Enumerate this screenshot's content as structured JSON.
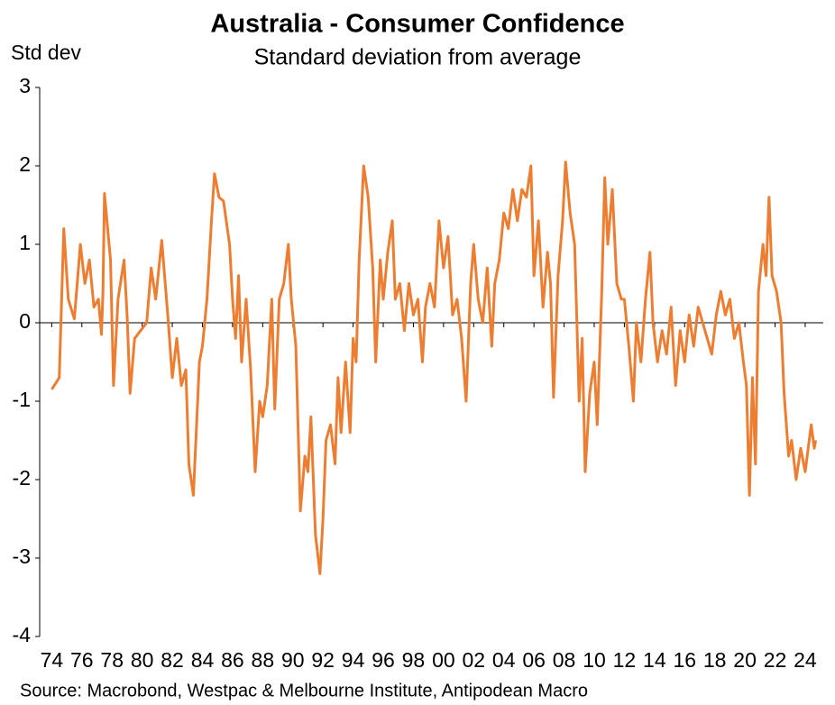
{
  "chart_data": {
    "type": "line",
    "title": "Australia - Consumer Confidence",
    "subtitle": "Standard deviation from average",
    "y_label": "Std dev",
    "source": "Source: Macrobond, Westpac & Melbourne Institute, Antipodean Macro",
    "xlim": [
      1973.2,
      2025.2
    ],
    "xticks": [
      {
        "value": 1974,
        "label": "74"
      },
      {
        "value": 1976,
        "label": "76"
      },
      {
        "value": 1978,
        "label": "78"
      },
      {
        "value": 1980,
        "label": "80"
      },
      {
        "value": 1982,
        "label": "82"
      },
      {
        "value": 1984,
        "label": "84"
      },
      {
        "value": 1986,
        "label": "86"
      },
      {
        "value": 1988,
        "label": "88"
      },
      {
        "value": 1990,
        "label": "90"
      },
      {
        "value": 1992,
        "label": "92"
      },
      {
        "value": 1994,
        "label": "94"
      },
      {
        "value": 1996,
        "label": "96"
      },
      {
        "value": 1998,
        "label": "98"
      },
      {
        "value": 2000,
        "label": "00"
      },
      {
        "value": 2002,
        "label": "02"
      },
      {
        "value": 2004,
        "label": "04"
      },
      {
        "value": 2006,
        "label": "06"
      },
      {
        "value": 2008,
        "label": "08"
      },
      {
        "value": 2010,
        "label": "10"
      },
      {
        "value": 2012,
        "label": "12"
      },
      {
        "value": 2014,
        "label": "14"
      },
      {
        "value": 2016,
        "label": "16"
      },
      {
        "value": 2018,
        "label": "18"
      },
      {
        "value": 2020,
        "label": "20"
      },
      {
        "value": 2022,
        "label": "22"
      },
      {
        "value": 2024,
        "label": "24"
      }
    ],
    "ylim": [
      -4,
      3
    ],
    "yticks": [
      3,
      2,
      1,
      0,
      -1,
      -2,
      -3,
      -4
    ],
    "grid": false,
    "x": [
      1974.0,
      1974.5,
      1974.8,
      1975.1,
      1975.5,
      1975.9,
      1976.2,
      1976.5,
      1976.8,
      1977.1,
      1977.3,
      1977.4,
      1977.5,
      1977.9,
      1978.1,
      1978.4,
      1978.8,
      1979.0,
      1979.2,
      1979.5,
      1979.9,
      1980.3,
      1980.6,
      1980.9,
      1981.3,
      1981.7,
      1982.0,
      1982.3,
      1982.6,
      1982.9,
      1983.1,
      1983.4,
      1983.8,
      1984.0,
      1984.3,
      1984.6,
      1984.8,
      1985.1,
      1985.4,
      1985.8,
      1986.0,
      1986.2,
      1986.4,
      1986.6,
      1986.9,
      1987.2,
      1987.5,
      1987.8,
      1988.0,
      1988.3,
      1988.6,
      1988.8,
      1989.1,
      1989.4,
      1989.7,
      1989.9,
      1990.2,
      1990.5,
      1990.8,
      1991.0,
      1991.2,
      1991.5,
      1991.8,
      1992.0,
      1992.2,
      1992.5,
      1992.8,
      1993.0,
      1993.2,
      1993.5,
      1993.8,
      1994.0,
      1994.2,
      1994.4,
      1994.7,
      1995.0,
      1995.3,
      1995.5,
      1995.8,
      1996.0,
      1996.3,
      1996.6,
      1996.8,
      1997.1,
      1997.4,
      1997.7,
      1998.0,
      1998.3,
      1998.6,
      1998.8,
      1999.1,
      1999.4,
      1999.7,
      2000.0,
      2000.3,
      2000.6,
      2000.9,
      2001.2,
      2001.5,
      2001.8,
      2002.0,
      2002.3,
      2002.6,
      2002.9,
      2003.2,
      2003.4,
      2003.7,
      2004.0,
      2004.3,
      2004.6,
      2004.9,
      2005.2,
      2005.5,
      2005.8,
      2006.0,
      2006.3,
      2006.6,
      2006.9,
      2007.1,
      2007.3,
      2007.6,
      2007.9,
      2008.1,
      2008.4,
      2008.7,
      2009.0,
      2009.2,
      2009.4,
      2009.7,
      2010.0,
      2010.2,
      2010.5,
      2010.7,
      2010.9,
      2011.2,
      2011.5,
      2011.8,
      2012.0,
      2012.3,
      2012.6,
      2012.8,
      2013.1,
      2013.4,
      2013.7,
      2013.9,
      2014.2,
      2014.5,
      2014.8,
      2015.1,
      2015.4,
      2015.7,
      2016.0,
      2016.3,
      2016.6,
      2016.9,
      2017.2,
      2017.5,
      2017.8,
      2018.1,
      2018.4,
      2018.7,
      2019.0,
      2019.3,
      2019.6,
      2019.9,
      2020.1,
      2020.3,
      2020.5,
      2020.7,
      2020.9,
      2021.2,
      2021.4,
      2021.6,
      2021.8,
      2022.1,
      2022.4,
      2022.6,
      2022.9,
      2023.1,
      2023.4,
      2023.7,
      2024.0,
      2024.2,
      2024.4,
      2024.6,
      2024.7
    ],
    "series": [
      {
        "name": "Consumer Confidence",
        "color": "#ED7D31",
        "values": [
          -0.85,
          -0.7,
          1.2,
          0.3,
          0.05,
          1.0,
          0.5,
          0.8,
          0.2,
          0.3,
          -0.15,
          0.4,
          1.65,
          0.8,
          -0.8,
          0.3,
          0.8,
          0.1,
          -0.9,
          -0.2,
          -0.1,
          0.0,
          0.7,
          0.3,
          1.05,
          0.1,
          -0.7,
          -0.2,
          -0.8,
          -0.6,
          -1.8,
          -2.2,
          -0.5,
          -0.3,
          0.3,
          1.3,
          1.9,
          1.6,
          1.55,
          1.0,
          0.3,
          -0.2,
          0.6,
          -0.5,
          0.3,
          -0.6,
          -1.9,
          -1.0,
          -1.2,
          -0.8,
          0.3,
          -1.1,
          0.3,
          0.5,
          1.0,
          0.3,
          -0.3,
          -2.4,
          -1.7,
          -1.9,
          -1.2,
          -2.7,
          -3.2,
          -2.5,
          -1.5,
          -1.3,
          -1.8,
          -0.7,
          -1.4,
          -0.5,
          -1.4,
          -0.2,
          -0.5,
          0.8,
          2.0,
          1.6,
          0.7,
          -0.5,
          0.8,
          0.3,
          0.9,
          1.3,
          0.3,
          0.5,
          -0.1,
          0.5,
          0.1,
          0.3,
          -0.5,
          0.2,
          0.5,
          0.2,
          1.3,
          0.7,
          1.1,
          0.1,
          0.3,
          -0.2,
          -1.0,
          0.5,
          1.0,
          0.3,
          0.0,
          0.7,
          -0.3,
          0.5,
          0.8,
          1.4,
          1.2,
          1.7,
          1.3,
          1.7,
          1.6,
          2.0,
          0.6,
          1.3,
          0.2,
          0.9,
          0.5,
          -0.95,
          0.6,
          1.3,
          2.05,
          1.4,
          1.0,
          -1.0,
          -0.2,
          -1.9,
          -0.9,
          -0.5,
          -1.3,
          0.4,
          1.85,
          1.0,
          1.7,
          0.5,
          0.3,
          0.3,
          -0.3,
          -1.0,
          0.0,
          -0.5,
          0.3,
          0.9,
          0.0,
          -0.5,
          -0.1,
          -0.4,
          0.2,
          -0.8,
          -0.1,
          -0.5,
          0.1,
          -0.3,
          0.2,
          0.0,
          -0.2,
          -0.4,
          0.1,
          0.4,
          0.1,
          0.3,
          -0.2,
          0.0,
          -0.5,
          -0.8,
          -2.2,
          -0.7,
          -1.8,
          0.4,
          1.0,
          0.6,
          1.6,
          0.6,
          0.4,
          0.0,
          -0.9,
          -1.7,
          -1.5,
          -2.0,
          -1.6,
          -1.9,
          -1.6,
          -1.3,
          -1.6,
          -1.5
        ]
      }
    ]
  }
}
